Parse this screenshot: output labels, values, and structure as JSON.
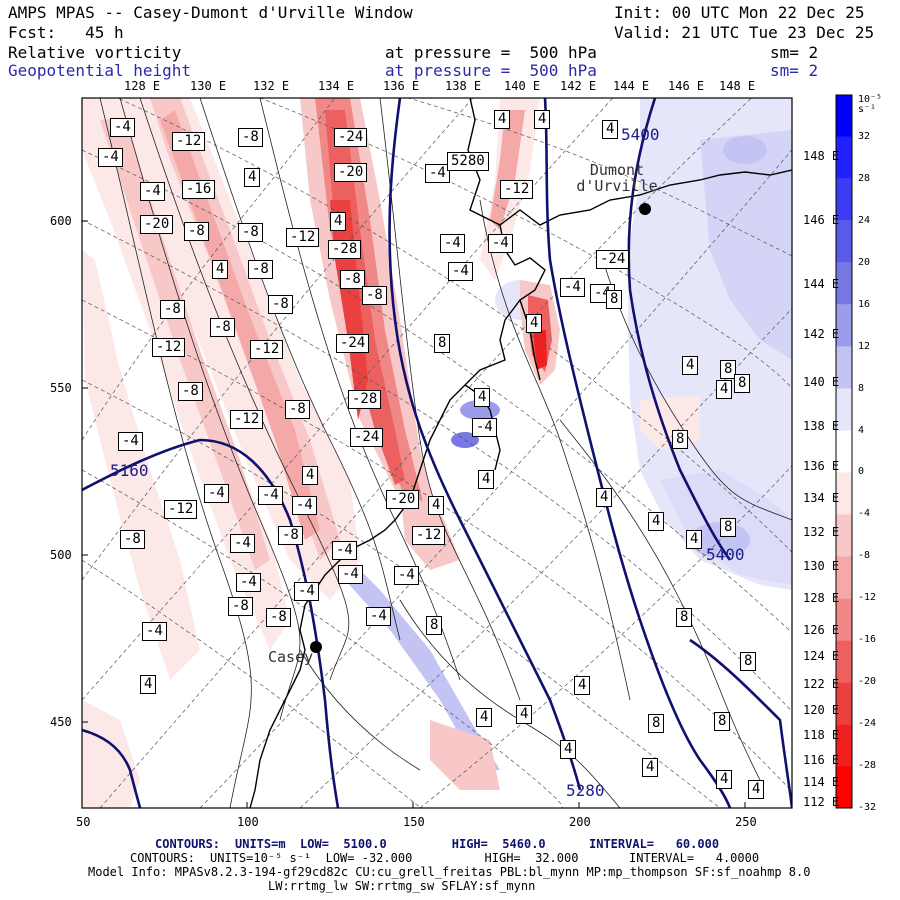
{
  "header": {
    "title": "AMPS MPAS -- Casey-Dumont d'Urville Window",
    "init": "Init: 00 UTC Mon 22 Dec 25",
    "fcst": "Fcst:   45 h",
    "valid": "Valid: 21 UTC Tue 23 Dec 25",
    "field1": {
      "name": "Relative vorticity",
      "level": "at pressure =  500 hPa",
      "sm": "sm= 2"
    },
    "field2": {
      "name": "Geopotential height",
      "level": "at pressure =  500 hPa",
      "sm": "sm= 2"
    }
  },
  "top_lon_labels": [
    "128 E",
    "130 E",
    "132 E",
    "134 E",
    "136 E",
    "138 E",
    "140 E",
    "142 E",
    "144 E",
    "146 E",
    "148 E"
  ],
  "right_lon_labels": [
    "148 E",
    "146 E",
    "144 E",
    "142 E",
    "140 E",
    "138 E",
    "136 E",
    "134 E",
    "132 E",
    "130 E",
    "128 E",
    "126 E",
    "124 E",
    "122 E",
    "120 E",
    "118 E",
    "116 E",
    "114 E",
    "112 E"
  ],
  "axes": {
    "x_ticks": [
      "50",
      "100",
      "150",
      "200",
      "250"
    ],
    "y_ticks": [
      "600",
      "550",
      "500",
      "450"
    ]
  },
  "colorbar": {
    "unit": "10⁻⁵ s⁻¹",
    "labels": [
      "32",
      "28",
      "24",
      "20",
      "16",
      "12",
      "8",
      "4",
      "0",
      "-4",
      "-8",
      "-12",
      "-16",
      "-20",
      "-24",
      "-28",
      "-32"
    ],
    "colors": [
      "#0000ff",
      "#2020ff",
      "#3c3cf0",
      "#5a5ae8",
      "#7878e4",
      "#9c9cec",
      "#c4c4f4",
      "#e6e6fa",
      "#ffffff",
      "#fde8e8",
      "#f8c8c8",
      "#f4a8a8",
      "#f08888",
      "#ec6060",
      "#ea4040",
      "#f02020",
      "#ff0000"
    ]
  },
  "stations": [
    {
      "label": "Dumont d'Urville"
    },
    {
      "label": "Casey"
    }
  ],
  "height_contours": [
    "5160",
    "5280",
    "5280",
    "5400",
    "5400"
  ],
  "vort_labels": [
    "-4",
    "-4",
    "-12",
    "-8",
    "-24",
    "4",
    "4",
    "4",
    "-4",
    "-16",
    "-4",
    "-20",
    "4",
    "5280",
    "-12",
    "-8",
    "-20",
    "-8",
    "4",
    "-12",
    "-4",
    "-4",
    "-28",
    "4",
    "-8",
    "-8",
    "-24",
    "-4",
    "-8",
    "-8",
    "-8",
    "-12",
    "-24",
    "8",
    "-4",
    "-8",
    "-28",
    "-12",
    "-8",
    "-24",
    "4",
    "-4",
    "-8",
    "4",
    "-4",
    "-4",
    "-20",
    "4",
    "4",
    "-12",
    "-4",
    "-12",
    "4",
    "-4",
    "-12",
    "-4",
    "-4",
    "-8",
    "-4",
    "-4",
    "-8",
    "-4",
    "-8",
    "-4",
    "-8",
    "-4",
    "-4",
    "-4",
    "8",
    "4",
    "8",
    "4",
    "8",
    "4",
    "8",
    "8",
    "4",
    "4",
    "8",
    "4",
    "8",
    "8",
    "4",
    "4",
    "8",
    "8",
    "4",
    "4",
    "4",
    "4",
    "4"
  ],
  "footer": {
    "line1_label": "CONTOURS:",
    "line1": "UNITS=m  LOW=  5100.0         HIGH=  5460.0      INTERVAL=   60.000",
    "line2_label": "CONTOURS:",
    "line2": "UNITS=10⁻⁵ s⁻¹  LOW= -32.000          HIGH=  32.000       INTERVAL=   4.0000",
    "model": "Model Info: MPASv8.2.3-194-gf29cd82c CU:cu_grell_freitas PBL:bl_mynn MP:mp_thompson SF:sf_noahmp 8.0",
    "phys": "LW:rrtmg_lw SW:rrtmg_sw SFLAY:sf_mynn"
  }
}
